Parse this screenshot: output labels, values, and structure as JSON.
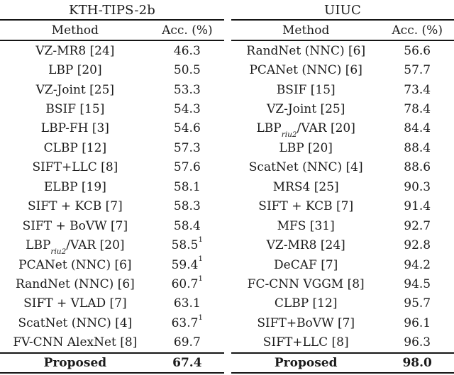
{
  "page": {
    "background_color": "#ffffff",
    "text_color": "#1b1b1b",
    "rule_color": "#151515"
  },
  "tables": [
    {
      "title": "KTH-TIPS-2b",
      "columns": [
        "Method",
        "Acc. (%)"
      ],
      "rows": [
        {
          "method": "VZ-MR8 [24]",
          "acc": "46.3"
        },
        {
          "method": "LBP [20]",
          "acc": "50.5"
        },
        {
          "method": "VZ-Joint [25]",
          "acc": "53.3"
        },
        {
          "method": "BSIF [15]",
          "acc": "54.3"
        },
        {
          "method": "LBP-FH [3]",
          "acc": "54.6"
        },
        {
          "method": "CLBP [12]",
          "acc": "57.3"
        },
        {
          "method": "SIFT+LLC [8]",
          "acc": "57.6"
        },
        {
          "method": "ELBP [19]",
          "acc": "58.1"
        },
        {
          "method": "SIFT + KCB [7]",
          "acc": "58.3"
        },
        {
          "method": "SIFT + BoVW [7]",
          "acc": "58.4"
        },
        {
          "method": {
            "pre": "LBP",
            "sub": "riu2",
            "post": "/VAR [20]"
          },
          "acc": "58.5",
          "sup": "1"
        },
        {
          "method": "PCANet (NNC) [6]",
          "acc": "59.4",
          "sup": "1"
        },
        {
          "method": "RandNet (NNC) [6]",
          "acc": "60.7",
          "sup": "1"
        },
        {
          "method": "SIFT + VLAD [7]",
          "acc": "63.1"
        },
        {
          "method": "ScatNet (NNC) [4]",
          "acc": "63.7",
          "sup": "1"
        },
        {
          "method": "FV-CNN AlexNet [8]",
          "acc": "69.7"
        }
      ],
      "footer": {
        "method": "Proposed",
        "acc": "67.4"
      }
    },
    {
      "title": "UIUC",
      "columns": [
        "Method",
        "Acc. (%)"
      ],
      "rows": [
        {
          "method": "RandNet (NNC) [6]",
          "acc": "56.6"
        },
        {
          "method": "PCANet (NNC) [6]",
          "acc": "57.7"
        },
        {
          "method": "BSIF [15]",
          "acc": "73.4"
        },
        {
          "method": "VZ-Joint [25]",
          "acc": "78.4"
        },
        {
          "method": {
            "pre": "LBP",
            "sub": "riu2",
            "post": "/VAR [20]"
          },
          "acc": "84.4"
        },
        {
          "method": "LBP [20]",
          "acc": "88.4"
        },
        {
          "method": "ScatNet (NNC) [4]",
          "acc": "88.6"
        },
        {
          "method": "MRS4 [25]",
          "acc": "90.3"
        },
        {
          "method": "SIFT + KCB [7]",
          "acc": "91.4"
        },
        {
          "method": "MFS [31]",
          "acc": "92.7"
        },
        {
          "method": "VZ-MR8 [24]",
          "acc": "92.8"
        },
        {
          "method": "DeCAF [7]",
          "acc": "94.2"
        },
        {
          "method": "FC-CNN VGGM [8]",
          "acc": "94.5"
        },
        {
          "method": "CLBP [12]",
          "acc": "95.7"
        },
        {
          "method": "SIFT+BoVW [7]",
          "acc": "96.1"
        },
        {
          "method": "SIFT+LLC [8]",
          "acc": "96.3"
        }
      ],
      "footer": {
        "method": "Proposed",
        "acc": "98.0"
      }
    }
  ]
}
